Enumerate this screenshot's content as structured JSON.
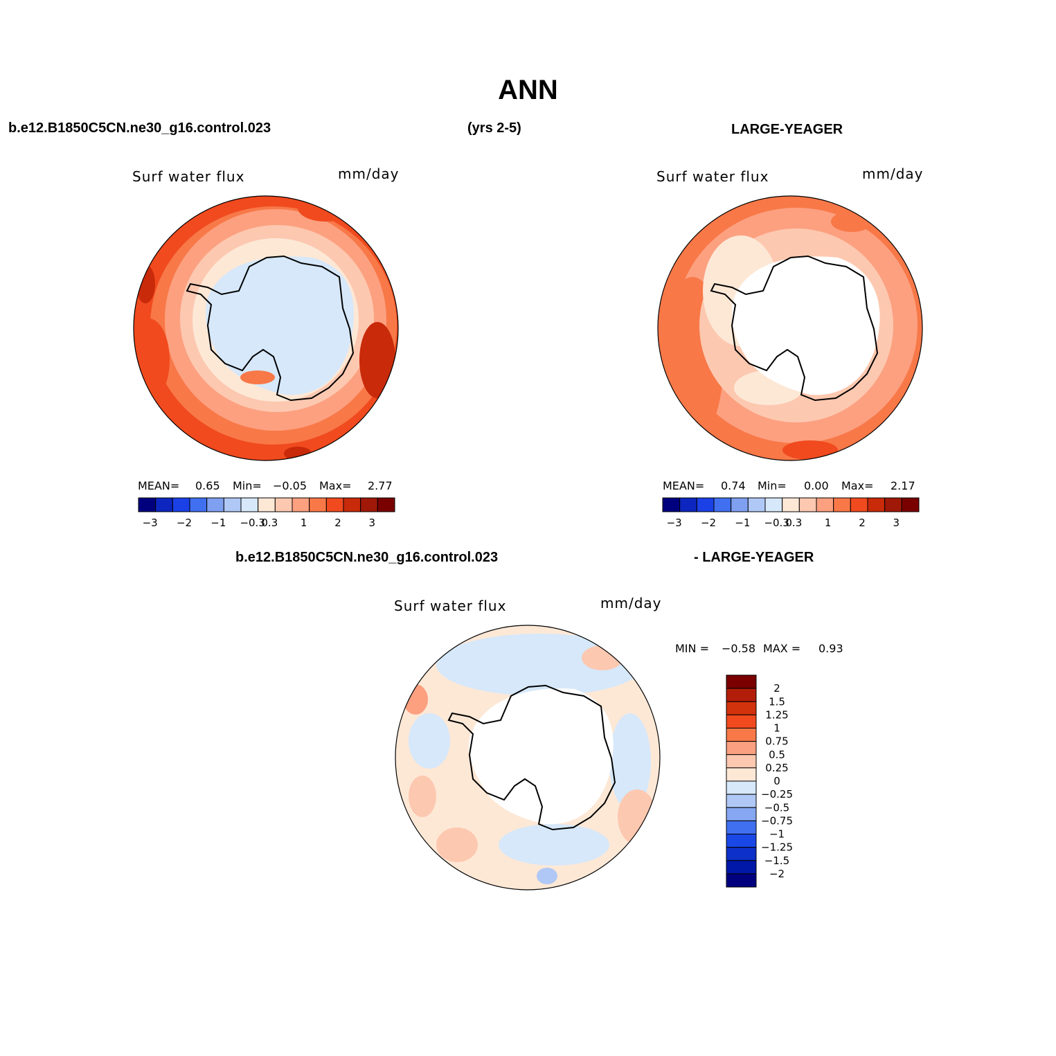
{
  "figure": {
    "title": "ANN",
    "header_left": "b.e12.B1850C5CN.ne30_g16.control.023",
    "header_center": "(yrs 2-5)",
    "header_right": "LARGE-YEAGER",
    "diff_header_left": "b.e12.B1850C5CN.ne30_g16.control.023",
    "diff_header_right": "- LARGE-YEAGER"
  },
  "panels": [
    {
      "id": "model",
      "variable": "Surf water flux",
      "units": "mm/day",
      "mean_label": "MEAN=",
      "mean": "0.65",
      "min_label": "Min=",
      "min": "−0.05",
      "max_label": "Max=",
      "max": "2.77"
    },
    {
      "id": "obs",
      "variable": "Surf water flux",
      "units": "mm/day",
      "mean_label": "MEAN=",
      "mean": "0.74",
      "min_label": "Min=",
      "min": "0.00",
      "max_label": "Max=",
      "max": "2.17"
    },
    {
      "id": "diff",
      "variable": "Surf water flux",
      "units": "mm/day",
      "min_label": "MIN =",
      "min": "−0.58",
      "max_label": "MAX =",
      "max": "0.93"
    }
  ],
  "colorbar_main": {
    "colors": [
      "#00007f",
      "#0d26bf",
      "#1a40e6",
      "#4070f0",
      "#7fa0f0",
      "#b0c8f6",
      "#d6e8fa",
      "#fde8d6",
      "#fdc8b0",
      "#fca080",
      "#f87848",
      "#f04a1e",
      "#c82a0a",
      "#a01808",
      "#7a0000"
    ],
    "tick_labels": [
      "−3",
      "−2",
      "−1",
      "−0.3",
      "0.3",
      "1",
      "2",
      "3"
    ]
  },
  "colorbar_diff": {
    "colors": [
      "#7a0000",
      "#b21e0a",
      "#d2320c",
      "#f04a1e",
      "#f87848",
      "#fba080",
      "#fdc8b0",
      "#fde8d6",
      "#d6e8fa",
      "#b0c8f6",
      "#86a8f2",
      "#4070f0",
      "#1a48e6",
      "#0d30c8",
      "#0018a8",
      "#00007f"
    ],
    "labels": [
      "2",
      "1.5",
      "1.25",
      "1",
      "0.75",
      "0.5",
      "0.25",
      "0",
      "−0.25",
      "−0.5",
      "−0.75",
      "−1",
      "−1.25",
      "−1.5",
      "−2"
    ]
  }
}
